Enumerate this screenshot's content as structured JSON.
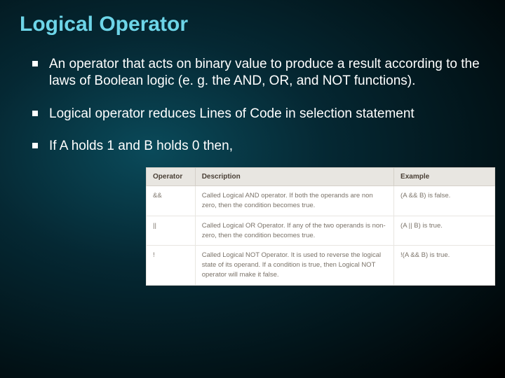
{
  "title": "Logical Operator",
  "bullets": [
    "An operator that acts on binary value to produce a result according to the laws of Boolean logic (e. g. the AND, OR, and NOT functions).",
    "Logical operator reduces Lines of Code in selection statement",
    "If A holds 1 and B holds 0 then,"
  ],
  "table": {
    "headers": [
      "Operator",
      "Description",
      "Example"
    ],
    "rows": [
      [
        "&&",
        "Called Logical AND operator. If both the operands are non zero, then the condition becomes true.",
        "(A && B) is false."
      ],
      [
        "||",
        "Called Logical OR Operator. If any of the two operands is non-zero, then the condition becomes true.",
        "(A || B) is true."
      ],
      [
        "!",
        "Called Logical NOT Operator. It is used to reverse the logical state of its operand. If a condition is true, then Logical NOT operator will make it false.",
        "!(A && B) is true."
      ]
    ]
  },
  "colors": {
    "title": "#6dd5e8",
    "text": "#ffffff",
    "table_header_bg": "#e8e6e1",
    "table_header_fg": "#4a4036",
    "table_cell_fg": "#7a7268",
    "table_border": "#e8e6e1"
  }
}
